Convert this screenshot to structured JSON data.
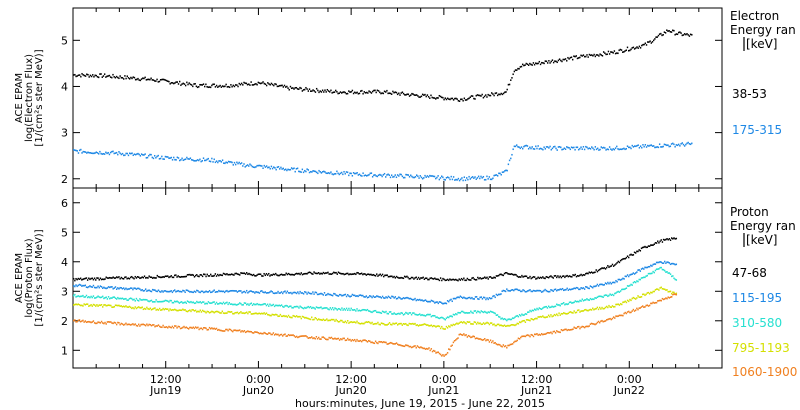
{
  "footer_label": "hours:minutes, June 19, 2015 - June 22, 2015",
  "chart_data": [
    {
      "type": "scatter",
      "panel": "electron",
      "ylabel_lines": [
        "ACE EPAM",
        "log(Electron Flux)",
        "[1/(cm²s ster MeV)]"
      ],
      "legend_title_lines": [
        "Electron",
        "Energy ran",
        "[keV]"
      ],
      "ylim": [
        1.8,
        5.7
      ],
      "y_ticks": [
        2,
        3,
        4,
        5
      ],
      "xlim": [
        0,
        84
      ],
      "series": [
        {
          "name": "38-53",
          "color": "#000000",
          "points": [
            [
              0,
              4.25
            ],
            [
              4,
              4.23
            ],
            [
              10,
              4.15
            ],
            [
              16,
              4.02
            ],
            [
              20,
              4.02
            ],
            [
              24,
              4.08
            ],
            [
              28,
              3.96
            ],
            [
              34,
              3.88
            ],
            [
              40,
              3.88
            ],
            [
              46,
              3.78
            ],
            [
              50,
              3.72
            ],
            [
              54,
              3.82
            ],
            [
              56,
              3.88
            ],
            [
              57,
              4.35
            ],
            [
              58,
              4.45
            ],
            [
              62,
              4.55
            ],
            [
              66,
              4.65
            ],
            [
              70,
              4.74
            ],
            [
              74,
              4.9
            ],
            [
              77,
              5.22
            ],
            [
              78,
              5.15
            ],
            [
              80,
              5.1
            ]
          ]
        },
        {
          "name": "175-315",
          "color": "#1e88e5",
          "points": [
            [
              0,
              2.6
            ],
            [
              6,
              2.55
            ],
            [
              12,
              2.45
            ],
            [
              18,
              2.4
            ],
            [
              22,
              2.3
            ],
            [
              28,
              2.2
            ],
            [
              36,
              2.1
            ],
            [
              44,
              2.05
            ],
            [
              50,
              2.0
            ],
            [
              54,
              2.02
            ],
            [
              56,
              2.15
            ],
            [
              57,
              2.7
            ],
            [
              62,
              2.66
            ],
            [
              70,
              2.66
            ],
            [
              76,
              2.72
            ],
            [
              80,
              2.75
            ]
          ]
        }
      ]
    },
    {
      "type": "scatter",
      "panel": "proton",
      "ylabel_lines": [
        "ACE EPAM",
        "log(Proton Flux)",
        "[1/(cm²s ster MeV)]"
      ],
      "legend_title_lines": [
        "Proton",
        "Energy ran",
        "[keV]"
      ],
      "ylim": [
        0.4,
        6.5
      ],
      "y_ticks": [
        1,
        2,
        3,
        4,
        5,
        6
      ],
      "xlim": [
        0,
        84
      ],
      "x_ticks": [
        {
          "value": 12,
          "label1": "12:00",
          "label2": "Jun19"
        },
        {
          "value": 24,
          "label1": "0:00",
          "label2": "Jun20"
        },
        {
          "value": 36,
          "label1": "12:00",
          "label2": "Jun20"
        },
        {
          "value": 48,
          "label1": "0:00",
          "label2": "Jun21"
        },
        {
          "value": 60,
          "label1": "12:00",
          "label2": "Jun21"
        },
        {
          "value": 72,
          "label1": "0:00",
          "label2": "Jun22"
        }
      ],
      "series": [
        {
          "name": "47-68",
          "color": "#000000",
          "points": [
            [
              0,
              3.4
            ],
            [
              6,
              3.45
            ],
            [
              12,
              3.5
            ],
            [
              18,
              3.55
            ],
            [
              22,
              3.6
            ],
            [
              24,
              3.55
            ],
            [
              28,
              3.58
            ],
            [
              32,
              3.62
            ],
            [
              38,
              3.58
            ],
            [
              42,
              3.48
            ],
            [
              48,
              3.4
            ],
            [
              50,
              3.4
            ],
            [
              54,
              3.45
            ],
            [
              56,
              3.6
            ],
            [
              58,
              3.5
            ],
            [
              60,
              3.45
            ],
            [
              66,
              3.55
            ],
            [
              70,
              3.9
            ],
            [
              74,
              4.5
            ],
            [
              76,
              4.7
            ],
            [
              78,
              4.8
            ]
          ]
        },
        {
          "name": "115-195",
          "color": "#1e88e5",
          "points": [
            [
              0,
              3.2
            ],
            [
              6,
              3.1
            ],
            [
              12,
              3.0
            ],
            [
              18,
              3.0
            ],
            [
              24,
              2.98
            ],
            [
              30,
              2.95
            ],
            [
              36,
              2.85
            ],
            [
              42,
              2.78
            ],
            [
              48,
              2.6
            ],
            [
              50,
              2.8
            ],
            [
              54,
              2.75
            ],
            [
              56,
              3.05
            ],
            [
              60,
              3.0
            ],
            [
              66,
              3.1
            ],
            [
              70,
              3.3
            ],
            [
              74,
              3.8
            ],
            [
              76,
              4.0
            ],
            [
              78,
              3.9
            ]
          ]
        },
        {
          "name": "310-580",
          "color": "#26e0d0",
          "points": [
            [
              0,
              2.85
            ],
            [
              6,
              2.75
            ],
            [
              12,
              2.65
            ],
            [
              18,
              2.6
            ],
            [
              24,
              2.55
            ],
            [
              30,
              2.45
            ],
            [
              36,
              2.38
            ],
            [
              42,
              2.25
            ],
            [
              46,
              2.2
            ],
            [
              48,
              2.05
            ],
            [
              50,
              2.3
            ],
            [
              54,
              2.3
            ],
            [
              56,
              2.0
            ],
            [
              60,
              2.4
            ],
            [
              66,
              2.7
            ],
            [
              70,
              2.9
            ],
            [
              74,
              3.5
            ],
            [
              76,
              3.8
            ],
            [
              78,
              3.4
            ]
          ]
        },
        {
          "name": "795-1193",
          "color": "#d4e000",
          "points": [
            [
              0,
              2.55
            ],
            [
              6,
              2.48
            ],
            [
              12,
              2.38
            ],
            [
              18,
              2.3
            ],
            [
              24,
              2.25
            ],
            [
              30,
              2.1
            ],
            [
              36,
              1.95
            ],
            [
              42,
              1.88
            ],
            [
              46,
              1.85
            ],
            [
              48,
              1.75
            ],
            [
              50,
              1.95
            ],
            [
              54,
              1.9
            ],
            [
              56,
              1.8
            ],
            [
              60,
              2.1
            ],
            [
              66,
              2.35
            ],
            [
              70,
              2.5
            ],
            [
              74,
              2.9
            ],
            [
              76,
              3.1
            ],
            [
              78,
              2.9
            ]
          ]
        },
        {
          "name": "1060-1900",
          "color": "#f08020",
          "points": [
            [
              0,
              2.0
            ],
            [
              6,
              1.9
            ],
            [
              12,
              1.8
            ],
            [
              18,
              1.72
            ],
            [
              24,
              1.6
            ],
            [
              30,
              1.45
            ],
            [
              36,
              1.35
            ],
            [
              42,
              1.2
            ],
            [
              46,
              1.05
            ],
            [
              48,
              0.8
            ],
            [
              50,
              1.55
            ],
            [
              54,
              1.3
            ],
            [
              56,
              1.1
            ],
            [
              58,
              1.45
            ],
            [
              62,
              1.6
            ],
            [
              66,
              1.8
            ],
            [
              70,
              2.1
            ],
            [
              74,
              2.5
            ],
            [
              76,
              2.7
            ],
            [
              78,
              2.9
            ]
          ]
        }
      ]
    }
  ]
}
